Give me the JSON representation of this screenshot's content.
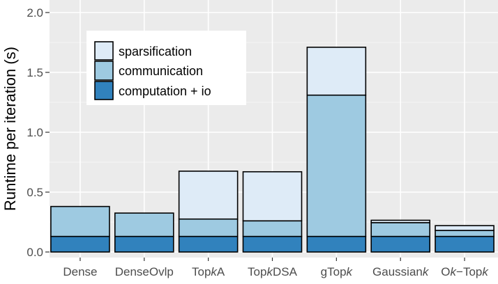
{
  "chart_data": {
    "type": "bar",
    "stacked": true,
    "title": "",
    "xlabel": "",
    "ylabel": "Runtime per iteration (s)",
    "ylim": [
      0,
      2.1
    ],
    "yticks": [
      0.0,
      0.5,
      1.0,
      1.5,
      2.0
    ],
    "ytick_labels": [
      "0.0",
      "0.5",
      "1.0",
      "1.5",
      "2.0"
    ],
    "categories": [
      "Dense",
      "DenseOvlp",
      "TopkA",
      "TopkDSA",
      "gTopk",
      "Gaussiank",
      "Ok−Topk"
    ],
    "category_labels": [
      [
        {
          "t": "Dense",
          "i": false
        }
      ],
      [
        {
          "t": "DenseOvlp",
          "i": false
        }
      ],
      [
        {
          "t": "Top",
          "i": false
        },
        {
          "t": "k",
          "i": true
        },
        {
          "t": "A",
          "i": false
        }
      ],
      [
        {
          "t": "Top",
          "i": false
        },
        {
          "t": "k",
          "i": true
        },
        {
          "t": "DSA",
          "i": false
        }
      ],
      [
        {
          "t": "gTop",
          "i": false
        },
        {
          "t": "k",
          "i": true
        }
      ],
      [
        {
          "t": "Gaussian",
          "i": false
        },
        {
          "t": "k",
          "i": true
        }
      ],
      [
        {
          "t": "O",
          "i": false
        },
        {
          "t": "k",
          "i": true
        },
        {
          "t": "−Top",
          "i": false
        },
        {
          "t": "k",
          "i": true
        }
      ]
    ],
    "series": [
      {
        "name": "computation + io",
        "color": "#3182bd",
        "values": [
          0.13,
          0.13,
          0.13,
          0.13,
          0.13,
          0.13,
          0.13
        ]
      },
      {
        "name": "communication",
        "color": "#9ecae1",
        "values": [
          0.25,
          0.195,
          0.145,
          0.13,
          1.18,
          0.115,
          0.05
        ]
      },
      {
        "name": "sparsification",
        "color": "#deebf7",
        "values": [
          0.0,
          0.0,
          0.4,
          0.41,
          0.4,
          0.02,
          0.04
        ]
      }
    ],
    "legend": {
      "position": "top-left",
      "entries": [
        "sparsification",
        "communication",
        "computation + io"
      ]
    },
    "background": "#ebebeb",
    "grid": true
  }
}
